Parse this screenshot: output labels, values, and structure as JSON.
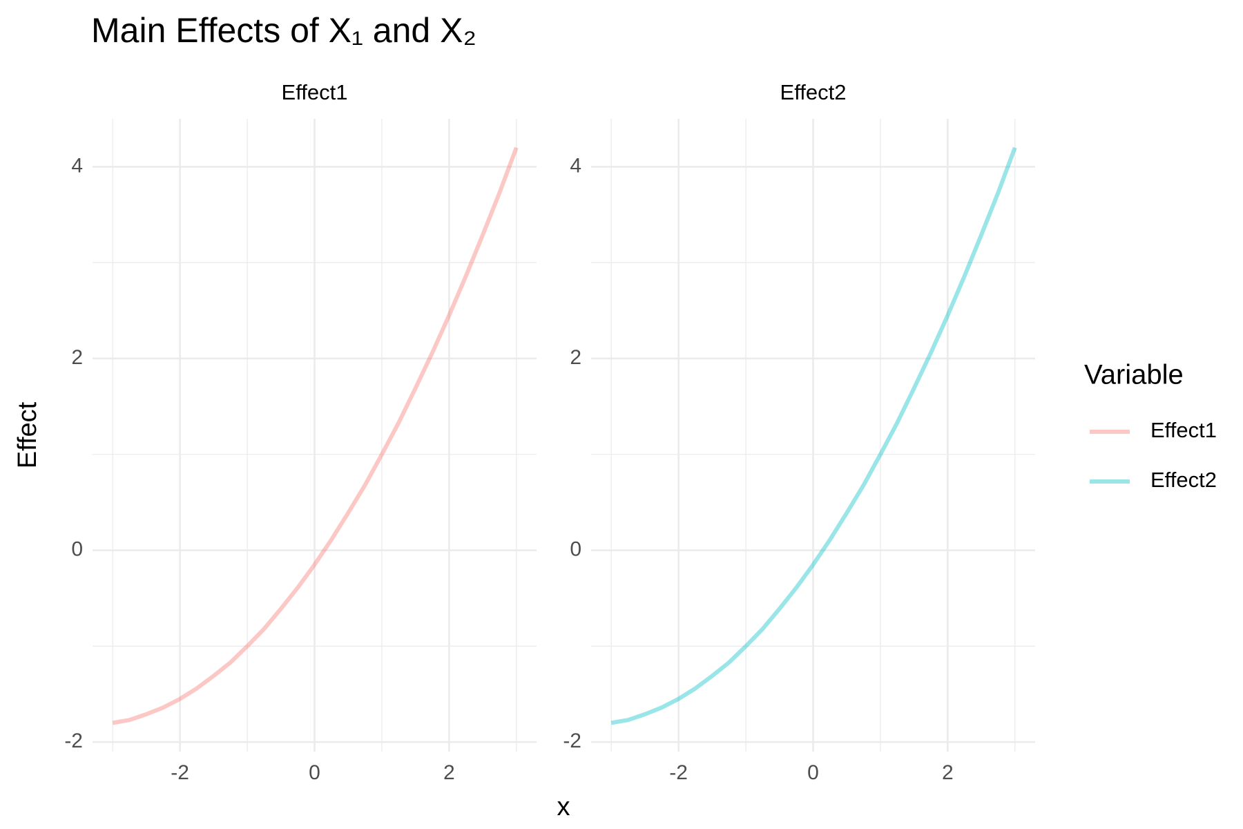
{
  "title": "Main Effects of X₁ and X₂",
  "x_label": "x",
  "y_label": "Effect",
  "legend_title": "Variable",
  "chart_data": [
    {
      "type": "line",
      "title": "Effect1",
      "x": [
        -3,
        -2.75,
        -2.5,
        -2.25,
        -2,
        -1.75,
        -1.5,
        -1.25,
        -1,
        -0.75,
        -0.5,
        -0.25,
        0,
        0.25,
        0.5,
        0.75,
        1,
        1.25,
        1.5,
        1.75,
        2,
        2.25,
        2.5,
        2.75,
        3
      ],
      "series": [
        {
          "name": "Effect1",
          "color": "#F8766D",
          "values": [
            -1.8,
            -1.77,
            -1.71,
            -1.64,
            -1.55,
            -1.44,
            -1.31,
            -1.17,
            -1,
            -0.82,
            -0.61,
            -0.39,
            -0.15,
            0.11,
            0.39,
            0.68,
            1,
            1.33,
            1.69,
            2.06,
            2.45,
            2.86,
            3.29,
            3.73,
            4.2
          ]
        }
      ],
      "xlim": [
        -3.3,
        3.3
      ],
      "ylim": [
        -2.1,
        4.5
      ],
      "xticks": [
        -2,
        0,
        2
      ],
      "yticks": [
        -2,
        0,
        2,
        4
      ],
      "xminor": [
        -3,
        -1,
        1,
        3
      ],
      "yminor": [
        -1,
        1,
        3
      ],
      "grid": true
    },
    {
      "type": "line",
      "title": "Effect2",
      "x": [
        -3,
        -2.75,
        -2.5,
        -2.25,
        -2,
        -1.75,
        -1.5,
        -1.25,
        -1,
        -0.75,
        -0.5,
        -0.25,
        0,
        0.25,
        0.5,
        0.75,
        1,
        1.25,
        1.5,
        1.75,
        2,
        2.25,
        2.5,
        2.75,
        3
      ],
      "series": [
        {
          "name": "Effect2",
          "color": "#00BFC4",
          "values": [
            -1.8,
            -1.77,
            -1.71,
            -1.64,
            -1.55,
            -1.44,
            -1.31,
            -1.17,
            -1,
            -0.82,
            -0.61,
            -0.39,
            -0.15,
            0.11,
            0.39,
            0.68,
            1,
            1.33,
            1.69,
            2.06,
            2.45,
            2.86,
            3.29,
            3.73,
            4.2
          ]
        }
      ],
      "xlim": [
        -3.3,
        3.3
      ],
      "ylim": [
        -2.1,
        4.5
      ],
      "xticks": [
        -2,
        0,
        2
      ],
      "yticks": [
        -2,
        0,
        2,
        4
      ],
      "xminor": [
        -3,
        -1,
        1,
        3
      ],
      "yminor": [
        -1,
        1,
        3
      ],
      "grid": true
    }
  ]
}
